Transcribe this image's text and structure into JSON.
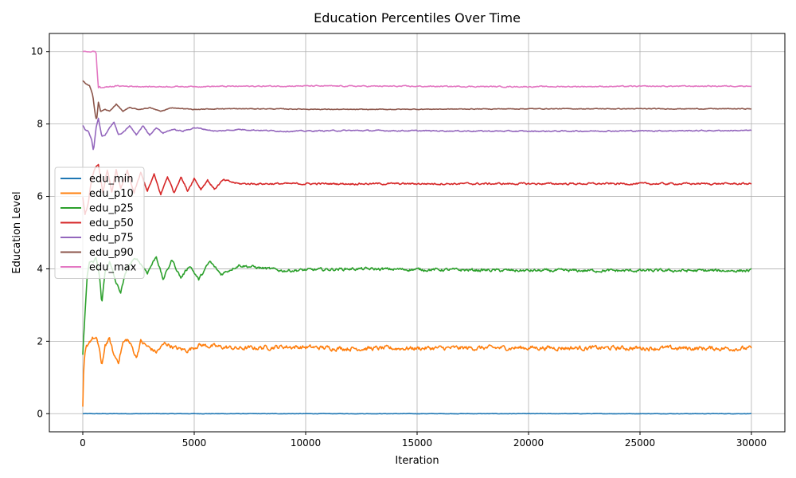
{
  "chart_data": {
    "type": "line",
    "title": "Education Percentiles Over Time",
    "xlabel": "Iteration",
    "ylabel": "Education Level",
    "xlim": [
      -1500,
      31500
    ],
    "ylim": [
      -0.5,
      10.5
    ],
    "xticks": [
      0,
      5000,
      10000,
      15000,
      20000,
      25000,
      30000
    ],
    "yticks": [
      0,
      2,
      4,
      6,
      8,
      10
    ],
    "grid": true,
    "legend_position": "center-left",
    "series": [
      {
        "name": "edu_min",
        "color": "#1f77b4",
        "x": [
          0,
          30000
        ],
        "y": [
          0,
          0
        ],
        "noise": 0.01
      },
      {
        "name": "edu_p10",
        "color": "#ff7f0e",
        "x": [
          0,
          30,
          80,
          150,
          300,
          450,
          600,
          750,
          850,
          1000,
          1200,
          1400,
          1600,
          1800,
          2000,
          2200,
          2400,
          2600,
          2900,
          3300,
          3700,
          4200,
          4700,
          5200,
          6000,
          7000,
          9000,
          12000,
          20000,
          30000
        ],
        "y": [
          0.15,
          1.0,
          1.55,
          1.8,
          2.0,
          2.1,
          2.05,
          1.8,
          1.25,
          1.9,
          2.05,
          1.6,
          1.45,
          1.95,
          2.05,
          1.85,
          1.55,
          2.0,
          1.85,
          1.7,
          1.95,
          1.8,
          1.75,
          1.9,
          1.85,
          1.8,
          1.85,
          1.8,
          1.82,
          1.8
        ],
        "noise": 0.12
      },
      {
        "name": "edu_p25",
        "color": "#2ca02c",
        "x": [
          0,
          100,
          200,
          300,
          450,
          600,
          750,
          850,
          1000,
          1200,
          1500,
          1700,
          2000,
          2400,
          2900,
          3300,
          3600,
          4000,
          4400,
          4800,
          5200,
          5700,
          6200,
          7000,
          9000,
          12000,
          20000,
          30000
        ],
        "y": [
          1.6,
          2.8,
          3.8,
          4.2,
          4.15,
          4.3,
          3.8,
          3.05,
          3.9,
          4.2,
          3.6,
          3.35,
          4.05,
          4.3,
          3.9,
          4.35,
          3.7,
          4.25,
          3.75,
          4.1,
          3.7,
          4.2,
          3.85,
          4.1,
          3.95,
          4.0,
          3.95,
          3.95
        ],
        "noise": 0.08
      },
      {
        "name": "edu_p50",
        "color": "#d62728",
        "x": [
          0,
          100,
          250,
          400,
          550,
          700,
          900,
          1100,
          1300,
          1500,
          1700,
          2000,
          2300,
          2600,
          2900,
          3200,
          3500,
          3800,
          4100,
          4400,
          4700,
          5000,
          5300,
          5600,
          5900,
          6300,
          7000,
          9000,
          12000,
          20000,
          30000
        ],
        "y": [
          6.0,
          5.5,
          5.8,
          6.5,
          6.8,
          6.85,
          6.1,
          6.75,
          6.1,
          6.75,
          6.2,
          6.7,
          6.1,
          6.65,
          6.15,
          6.6,
          6.05,
          6.55,
          6.1,
          6.55,
          6.15,
          6.5,
          6.2,
          6.45,
          6.2,
          6.45,
          6.35,
          6.35,
          6.35,
          6.35,
          6.35
        ],
        "noise": 0.05
      },
      {
        "name": "edu_p75",
        "color": "#9467bd",
        "x": [
          0,
          100,
          250,
          400,
          480,
          600,
          700,
          850,
          1000,
          1200,
          1400,
          1600,
          1800,
          2100,
          2400,
          2700,
          3000,
          3300,
          3600,
          4000,
          4500,
          5000,
          6000,
          7000,
          9000,
          12000,
          20000,
          30000
        ],
        "y": [
          7.95,
          7.85,
          7.8,
          7.55,
          7.25,
          7.9,
          8.15,
          7.65,
          7.7,
          7.9,
          8.05,
          7.7,
          7.75,
          7.95,
          7.7,
          7.95,
          7.7,
          7.9,
          7.75,
          7.85,
          7.8,
          7.9,
          7.8,
          7.85,
          7.8,
          7.82,
          7.8,
          7.82
        ],
        "noise": 0.03
      },
      {
        "name": "edu_p90",
        "color": "#8c564b",
        "x": [
          0,
          150,
          300,
          450,
          550,
          620,
          700,
          800,
          1000,
          1200,
          1500,
          1800,
          2100,
          2500,
          3000,
          3500,
          4000,
          5000,
          6000,
          8000,
          12000,
          20000,
          30000
        ],
        "y": [
          9.2,
          9.1,
          9.05,
          8.8,
          8.3,
          8.1,
          8.6,
          8.35,
          8.4,
          8.35,
          8.55,
          8.35,
          8.45,
          8.4,
          8.45,
          8.35,
          8.45,
          8.4,
          8.42,
          8.42,
          8.4,
          8.42,
          8.42
        ],
        "noise": 0.02
      },
      {
        "name": "edu_max",
        "color": "#e377c2",
        "x": [
          0,
          550,
          600,
          650,
          700,
          750,
          800,
          1500,
          3000,
          10000,
          20000,
          30000
        ],
        "y": [
          10.0,
          10.0,
          9.95,
          9.4,
          9.0,
          9.05,
          9.0,
          9.05,
          9.03,
          9.05,
          9.03,
          9.05
        ],
        "noise": 0.03
      }
    ]
  }
}
